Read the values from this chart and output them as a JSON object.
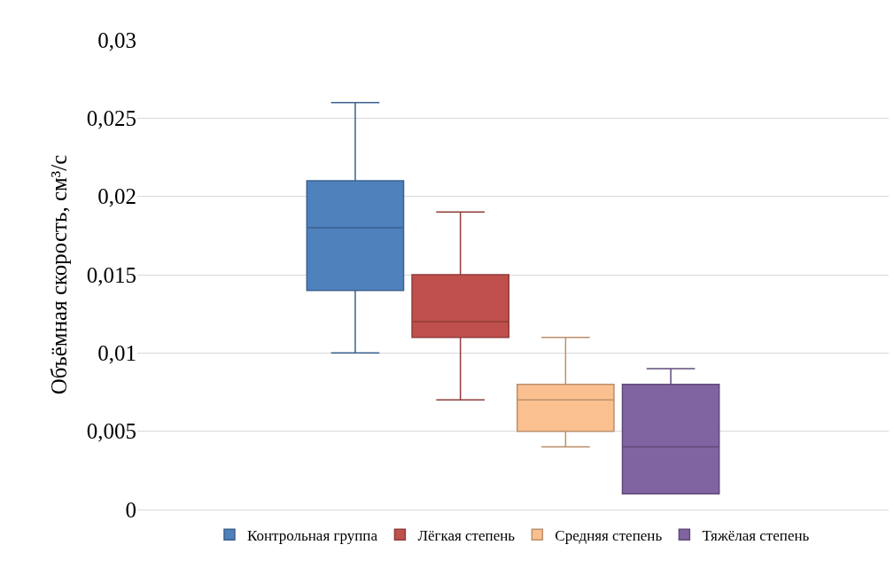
{
  "chart_data": {
    "type": "box",
    "ylabel": "Объёмная скорость, см³/с",
    "categories": [
      null
    ],
    "series": [
      {
        "name": "Контрольная группа",
        "color": "#4f81bd",
        "boxes": [
          {
            "low": 0.01,
            "q1": 0.014,
            "median": 0.018,
            "q3": 0.021,
            "high": 0.026
          }
        ]
      },
      {
        "name": "Лёгкая степень",
        "color": "#c0504d",
        "boxes": [
          {
            "low": 0.007,
            "q1": 0.011,
            "median": 0.012,
            "q3": 0.015,
            "high": 0.019
          }
        ]
      },
      {
        "name": "Средняя степень",
        "color": "#fac090",
        "boxes": [
          {
            "low": 0.004,
            "q1": 0.005,
            "median": 0.007,
            "q3": 0.008,
            "high": 0.011
          }
        ]
      },
      {
        "name": "Тяжёлая степень",
        "color": "#8064a2",
        "boxes": [
          {
            "low": 0.001,
            "q1": 0.001,
            "median": 0.004,
            "q3": 0.008,
            "high": 0.009
          }
        ]
      }
    ],
    "ylim": [
      0,
      0.03
    ],
    "yticks": [
      0,
      {
        "value": 0.005,
        "label": "0,005"
      },
      {
        "value": 0.01,
        "label": "0,01"
      },
      {
        "value": 0.015,
        "label": "0,015"
      },
      {
        "value": 0.02,
        "label": "0,02"
      },
      {
        "value": 0.025,
        "label": "0,025"
      },
      {
        "value": 0.03,
        "label": "0,03"
      }
    ],
    "grid": "y",
    "legend": "bottom",
    "tick_labels": "y"
  }
}
